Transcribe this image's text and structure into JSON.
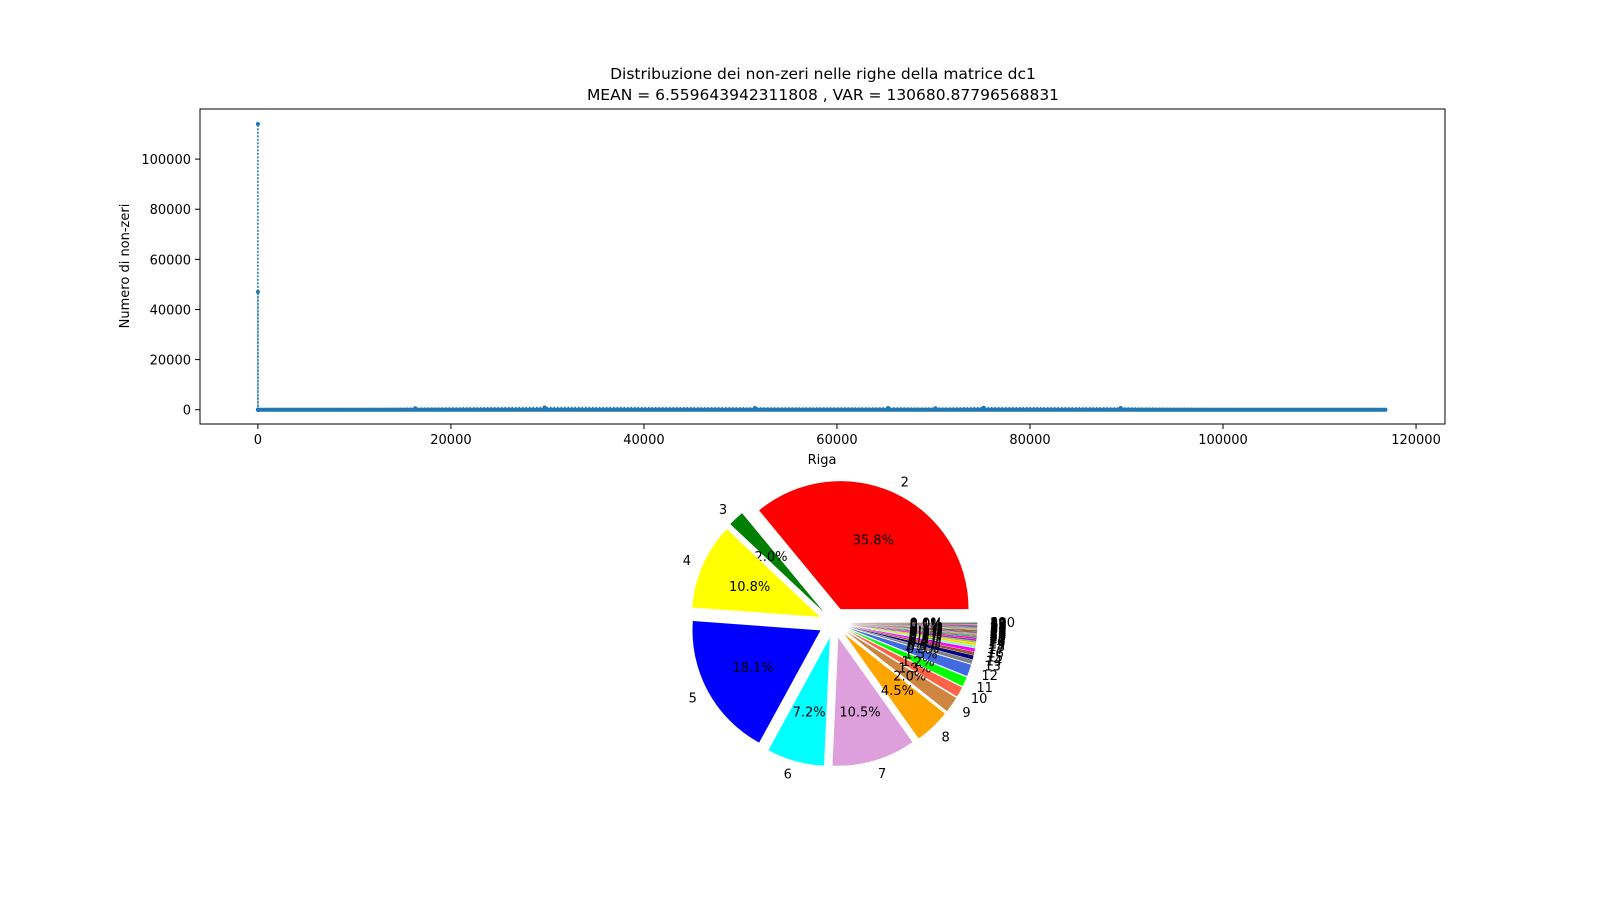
{
  "chart_data": [
    {
      "type": "line",
      "title": "Distribuzione dei non-zeri nelle righe della matrice dc1",
      "subtitle": "MEAN = 6.559643942311808 , VAR = 130680.87796568831",
      "xlabel": "Riga",
      "ylabel": "Numero di non-zeri",
      "xlim": [
        -6000,
        123000
      ],
      "ylim": [
        -5700,
        120000
      ],
      "x_ticks": [
        0,
        20000,
        40000,
        60000,
        80000,
        100000,
        120000
      ],
      "y_ticks": [
        0,
        20000,
        40000,
        60000,
        80000,
        100000
      ],
      "line_style": "dotted",
      "marker": "point",
      "color": "#1f77b4",
      "series": [
        {
          "x": [
            0,
            1,
            2,
            3,
            4,
            5,
            6,
            7,
            16300,
            29700,
            51500,
            65300,
            70200,
            75200,
            89400,
            116835
          ],
          "values": [
            0,
            114000,
            0,
            47000,
            0,
            0,
            0,
            0,
            600,
            900,
            700,
            700,
            600,
            800,
            700,
            0
          ]
        }
      ]
    },
    {
      "type": "pie",
      "categories": [
        "2",
        "3",
        "4",
        "5",
        "6",
        "7",
        "8",
        "9",
        "10",
        "11",
        "12",
        "13",
        "14",
        "15",
        "16",
        "17",
        "18",
        "19",
        "20",
        "21",
        "22",
        "23",
        "24",
        "25",
        "26",
        "27",
        "28",
        "29",
        "30",
        "31",
        "32",
        "33",
        "34",
        "35",
        "36",
        "37",
        "38",
        "39",
        "40",
        "190"
      ],
      "values": [
        35.8,
        2.0,
        10.8,
        18.1,
        7.2,
        10.5,
        4.5,
        2.0,
        1.3,
        1.2,
        1.5,
        0.5,
        0.5,
        0.4,
        0.4,
        0.3,
        0.3,
        0.2,
        0.2,
        0.2,
        0.2,
        0.1,
        0.1,
        0.1,
        0.1,
        0.1,
        0.1,
        0.1,
        0.1,
        0.1,
        0.1,
        0.1,
        0.1,
        0.1,
        0.1,
        0.0,
        0.0,
        0.0,
        0.0,
        0.0
      ],
      "pct_labels": [
        "35.8%",
        "2.0%",
        "10.8%",
        "18.1%",
        "7.2%",
        "10.5%",
        "4.5%",
        "2.0%",
        "1.3%",
        "1.2%",
        "1.5%",
        "0.5%",
        "0.5%",
        "0.4%",
        "0.4%",
        "0.3%",
        "0.3%",
        "0.2%",
        "0.2%",
        "0.2%",
        "0.2%",
        "0.1%",
        "0.1%",
        "0.1%",
        "0.1%",
        "0.1%",
        "0.1%",
        "0.1%",
        "0.1%",
        "0.1%",
        "0.1%",
        "0.1%",
        "0.1%",
        "0.1%",
        "0.1%",
        "0.0%",
        "0.0%",
        "0.0%",
        "0.0%",
        "0.0%"
      ],
      "colors": [
        "#ff0000",
        "#008000",
        "#ffff00",
        "#0000ff",
        "#00ffff",
        "#dda0dd",
        "#ffa500",
        "#cd853f",
        "#ff6347",
        "#00ff00",
        "#4169e1",
        "#808080",
        "#000080",
        "#a0522d",
        "#ff00ff",
        "#7fffd4",
        "#ffd700",
        "#9acd32",
        "#8a2be2",
        "#ff1493",
        "#20b2aa",
        "#d2691e",
        "#bdb76b",
        "#6495ed",
        "#dc143c",
        "#2e8b57",
        "#b22222",
        "#66cdaa",
        "#ff8c00",
        "#9370db",
        "#3cb371",
        "#c71585",
        "#4682b4",
        "#f08080",
        "#556b2f",
        "#da70d6",
        "#5f9ea0",
        "#eee8aa",
        "#708090",
        "#87cefa"
      ],
      "start_angle_deg": 0,
      "counterclock": true
    }
  ]
}
